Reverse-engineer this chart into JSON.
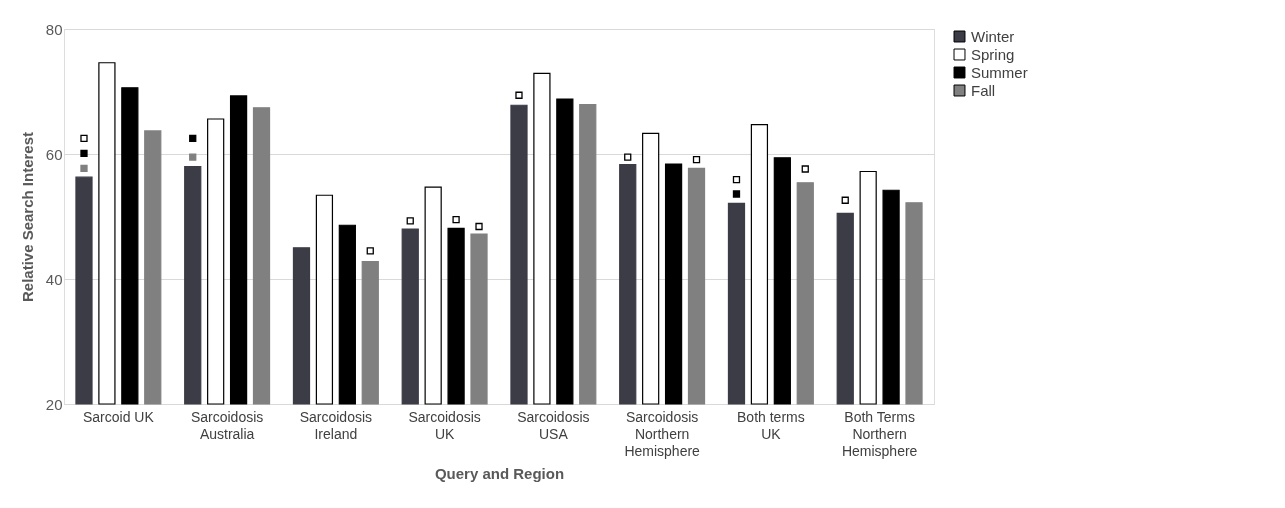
{
  "chart_data": {
    "type": "bar",
    "xlabel": "Query and Region",
    "ylabel": "Relative Search Interest",
    "categories": [
      "Sarcoid UK",
      "Sarcoidosis Australia",
      "Sarcoidosis Ireland",
      "Sarcoidosis UK",
      "Sarcoidosis USA",
      "Sarcoidosis Northern Hemisphere",
      "Both terms UK",
      "Both Terms Northern Hemisphere"
    ],
    "series": [
      {
        "name": "Winter",
        "color": "#3c3c46",
        "values": [
          56.3,
          58.0,
          45.0,
          48.0,
          67.8,
          58.3,
          52.1,
          50.5
        ]
      },
      {
        "type": "scatter",
        "marker": "square",
        "color": "#ffffff",
        "x": [
          "Sarcoid UK",
          "Sarcoidosis UK",
          "Sarcoidosis USA",
          "Sarcoidosis Northern Hemisphere",
          "Both terms UK",
          "Both Terms Northern Hemisphere"
        ],
        "values": [
          62.5,
          49.3,
          69.4,
          59.5,
          55.9,
          52.6
        ]
      },
      {
        "type": "scatter",
        "marker": "square",
        "color": "#000000",
        "x": [
          "Sarcoid UK",
          "Sarcoidosis Australia",
          "Both terms UK"
        ],
        "values": [
          60.1,
          62.5,
          53.6
        ]
      },
      {
        "type": "scatter",
        "marker": "square",
        "color": "#808080",
        "x": [
          "Sarcoid UK",
          "Sarcoidosis Australia"
        ],
        "values": [
          57.7,
          59.5
        ]
      },
      {
        "name": "Spring",
        "color": "#ffffff",
        "values": [
          74.6,
          65.6,
          53.4,
          54.7,
          72.9,
          63.3,
          64.7,
          57.2
        ]
      },
      {
        "name": "Summer",
        "color": "#000000",
        "values": [
          70.6,
          69.3,
          48.6,
          48.1,
          68.8,
          58.4,
          59.4,
          54.2
        ]
      },
      {
        "type": "scatter",
        "marker": "square",
        "color": "#ffffff",
        "x": [
          "Sarcoidosis UK"
        ],
        "values": [
          49.5
        ]
      },
      {
        "name": "Fall",
        "color": "#808080",
        "values": [
          63.7,
          67.4,
          42.8,
          47.2,
          67.9,
          57.7,
          55.4,
          52.2
        ]
      },
      {
        "type": "scatter",
        "marker": "square",
        "color": "#ffffff",
        "x": [
          "Sarcoidosis Ireland",
          "Sarcoidosis UK",
          "Sarcoidosis Northern Hemisphere",
          "Both terms UK"
        ],
        "values": [
          44.5,
          48.4,
          59.1,
          57.6
        ]
      }
    ],
    "ylim": [
      20,
      80
    ],
    "yticks": [
      20,
      40,
      60,
      80
    ],
    "grid": "y",
    "legend": "top right"
  }
}
